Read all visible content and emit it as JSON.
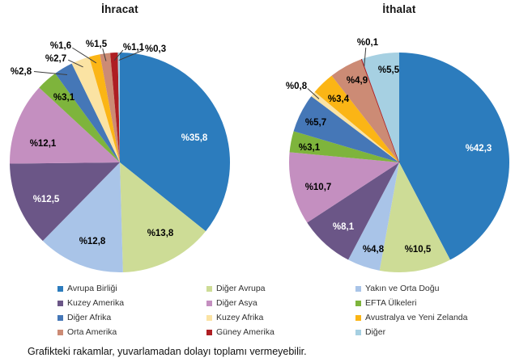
{
  "footnote": "Grafikteki rakamlar, yuvarlamadan dolayı toplamı vermeyebilir.",
  "legend": {
    "position": "bottom",
    "columns": [
      [
        {
          "label": "Avrupa Birliği",
          "color": "#2C7CBD",
          "slug": "avrupa-birligi"
        },
        {
          "label": "Kuzey Amerika",
          "color": "#6B5687",
          "slug": "kuzey-amerika"
        },
        {
          "label": "Diğer Afrika",
          "color": "#4577B7",
          "slug": "diger-afrika"
        },
        {
          "label": "Orta Amerika",
          "color": "#CC8B75",
          "slug": "orta-amerika"
        }
      ],
      [
        {
          "label": "Diğer Avrupa",
          "color": "#CDDC96",
          "slug": "diger-avrupa"
        },
        {
          "label": "Diğer Asya",
          "color": "#C48FC0",
          "slug": "diger-asya"
        },
        {
          "label": "Kuzey Afrika",
          "color": "#FBE3A3",
          "slug": "kuzey-afrika"
        },
        {
          "label": "Güney Amerika",
          "color": "#AE1E23",
          "slug": "guney-amerika"
        }
      ],
      [
        {
          "label": "Yakın ve Orta Doğu",
          "color": "#A9C4E8",
          "slug": "yakin-ve-orta-dogu"
        },
        {
          "label": "EFTA Ülkeleri",
          "color": "#7EB43C",
          "slug": "efta-ulkeleri"
        },
        {
          "label": "Avustralya ve Yeni Zelanda",
          "color": "#FBB515",
          "slug": "avustralya-ve-yeni-zelanda"
        },
        {
          "label": "Diğer",
          "color": "#A6D0E2",
          "slug": "diger"
        }
      ]
    ]
  },
  "chart_data": [
    {
      "type": "pie",
      "title": "İhracat",
      "slug": "ihracat",
      "unit": "%",
      "center": [
        148,
        201
      ],
      "radius": 136,
      "start_angle_deg": 0,
      "direction": "clockwise",
      "slices": [
        {
          "name": "Avrupa Birliği",
          "slug": "avrupa-birligi",
          "value": 35.8,
          "label": "%35,8",
          "color": "#2C7CBD",
          "label_pos": [
            240,
            170
          ],
          "label_color": "#ffffff",
          "leader": false
        },
        {
          "name": "Diğer Avrupa",
          "slug": "diger-avrupa",
          "value": 13.8,
          "label": "%13,8",
          "color": "#CDDC96",
          "label_pos": [
            198,
            288
          ],
          "label_color": "#000000",
          "leader": false
        },
        {
          "name": "Yakın ve Orta Doğu",
          "slug": "yakin-ve-orta-dogu",
          "value": 12.8,
          "label": "%12,8",
          "color": "#A9C4E8",
          "label_pos": [
            114,
            298
          ],
          "label_color": "#000000",
          "leader": false
        },
        {
          "name": "Kuzey Amerika",
          "slug": "kuzey-amerika",
          "value": 12.5,
          "label": "%12,5",
          "color": "#6B5687",
          "label_pos": [
            57,
            246
          ],
          "label_color": "#ffffff",
          "leader": false
        },
        {
          "name": "Diğer Asya",
          "slug": "diger-asya",
          "value": 12.1,
          "label": "%12,1",
          "color": "#C48FC0",
          "label_pos": [
            53,
            177
          ],
          "label_color": "#000000",
          "leader": false
        },
        {
          "name": "EFTA Ülkeleri",
          "slug": "efta-ulkeleri",
          "value": 3.1,
          "label": "%3,1",
          "color": "#7EB43C",
          "label_pos": [
            79,
            120
          ],
          "label_color": "#000000",
          "leader": false
        },
        {
          "name": "Diğer Afrika",
          "slug": "diger-afrika",
          "value": 2.8,
          "label": "%2,8",
          "color": "#4577B7",
          "label_pos": [
            26,
            88
          ],
          "label_color": "#000000",
          "leader": true
        },
        {
          "name": "Kuzey Afrika",
          "slug": "kuzey-afrika",
          "value": 2.7,
          "label": "%2,7",
          "color": "#FBE3A3",
          "label_pos": [
            69,
            72
          ],
          "label_color": "#000000",
          "leader": true
        },
        {
          "name": "Avustralya ve Yeni Zelanda",
          "slug": "avustralya-ve-yeni-zelanda",
          "value": 1.6,
          "label": "%1,6",
          "color": "#FBB515",
          "label_pos": [
            75,
            56
          ],
          "label_color": "#000000",
          "leader": true
        },
        {
          "name": "Orta Amerika",
          "slug": "orta-amerika",
          "value": 1.5,
          "label": "%1,5",
          "color": "#CC8B75",
          "label_pos": [
            119,
            54
          ],
          "label_color": "#000000",
          "leader": true
        },
        {
          "name": "Güney Amerika",
          "slug": "guney-amerika",
          "value": 1.1,
          "label": "%1,1",
          "color": "#AE1E23",
          "label_pos": [
            165,
            58
          ],
          "label_color": "#000000",
          "leader": true
        },
        {
          "name": "Diğer",
          "slug": "diger",
          "value": 0.3,
          "label": "%0,3",
          "color": "#A6D0E2",
          "label_pos": [
            192,
            60
          ],
          "label_color": "#000000",
          "leader": true
        }
      ]
    },
    {
      "type": "pie",
      "title": "İthalat",
      "slug": "ithalat",
      "unit": "%",
      "center": [
        493,
        201
      ],
      "radius": 136,
      "start_angle_deg": 0,
      "direction": "clockwise",
      "slices": [
        {
          "name": "Avrupa Birliği",
          "slug": "avrupa-birligi",
          "value": 42.3,
          "label": "%42,3",
          "color": "#2C7CBD",
          "label_pos": [
            591,
            183
          ],
          "label_color": "#ffffff",
          "leader": false
        },
        {
          "name": "Diğer Avrupa",
          "slug": "diger-avrupa",
          "value": 10.5,
          "label": "%10,5",
          "color": "#CDDC96",
          "label_pos": [
            516,
            308
          ],
          "label_color": "#000000",
          "leader": false
        },
        {
          "name": "Yakın ve Orta Doğu",
          "slug": "yakin-ve-orta-dogu",
          "value": 4.8,
          "label": "%4,8",
          "color": "#A9C4E8",
          "label_pos": [
            461,
            308
          ],
          "label_color": "#000000",
          "leader": false
        },
        {
          "name": "Kuzey Amerika",
          "slug": "kuzey-amerika",
          "value": 8.1,
          "label": "%8,1",
          "color": "#6B5687",
          "label_pos": [
            424,
            280
          ],
          "label_color": "#ffffff",
          "leader": false
        },
        {
          "name": "Diğer Asya",
          "slug": "diger-asya",
          "value": 10.7,
          "label": "%10,7",
          "color": "#C48FC0",
          "label_pos": [
            393,
            231
          ],
          "label_color": "#000000",
          "leader": false
        },
        {
          "name": "EFTA Ülkeleri",
          "slug": "efta-ulkeleri",
          "value": 3.1,
          "label": "%3,1",
          "color": "#7EB43C",
          "label_pos": [
            382,
            182
          ],
          "label_color": "#000000",
          "leader": false
        },
        {
          "name": "Diğer Afrika",
          "slug": "diger-afrika",
          "value": 5.7,
          "label": "%5,7",
          "color": "#4577B7",
          "label_pos": [
            390,
            151
          ],
          "label_color": "#000000",
          "leader": false
        },
        {
          "name": "Kuzey Afrika",
          "slug": "kuzey-afrika",
          "value": 0.8,
          "label": "%0,8",
          "color": "#FBE3A3",
          "label_pos": [
            366,
            106
          ],
          "label_color": "#000000",
          "leader": true
        },
        {
          "name": "Avustralya ve Yeni Zelanda",
          "slug": "avustralya-ve-yeni-zelanda",
          "value": 3.4,
          "label": "%3,4",
          "color": "#FBB515",
          "label_pos": [
            418,
            122
          ],
          "label_color": "#000000",
          "leader": false
        },
        {
          "name": "Orta Amerika",
          "slug": "orta-amerika",
          "value": 4.9,
          "label": "%4,9",
          "color": "#CC8B75",
          "label_pos": [
            441,
            99
          ],
          "label_color": "#000000",
          "leader": false
        },
        {
          "name": "Güney Amerika",
          "slug": "guney-amerika",
          "value": 0.1,
          "label": "%0,1",
          "color": "#AE1E23",
          "label_pos": [
            454,
            52
          ],
          "label_color": "#000000",
          "leader": true
        },
        {
          "name": "Diğer",
          "slug": "diger",
          "value": 5.5,
          "label": "%5,5",
          "color": "#A6D0E2",
          "label_pos": [
            480,
            86
          ],
          "label_color": "#000000",
          "leader": false
        }
      ]
    }
  ]
}
